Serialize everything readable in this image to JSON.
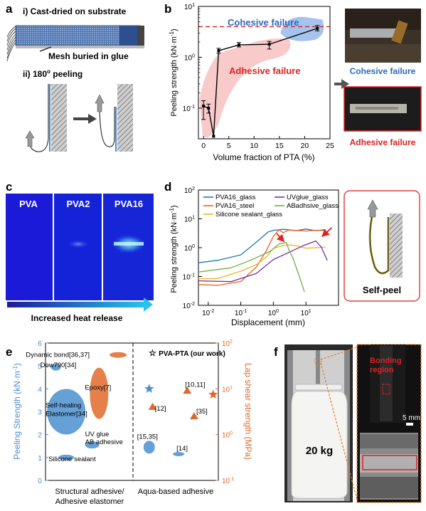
{
  "panel_letters": [
    "a",
    "b",
    "c",
    "d",
    "e",
    "f"
  ],
  "panel_a": {
    "step1": "i) Cast-dried on substrate",
    "mesh_label": "Mesh buried in glue",
    "step2_prefix": "ii) 180",
    "step2_sup": "o",
    "step2_suffix": " peeling"
  },
  "panel_b_photos": {
    "cohesive_caption": "Cohesive failure",
    "adhesive_caption": "Adhesive failure"
  },
  "panel_c": {
    "sample_labels": [
      "PVA",
      "PVA2",
      "PVA16"
    ],
    "arrow_caption": "Increased heat release"
  },
  "panel_d_inset": {
    "caption": "Self-peel"
  },
  "panel_f": {
    "weight_label": "20 kg",
    "region_label_1": "Bonding",
    "region_label_2": "region",
    "scale_label": "5 mm"
  },
  "colors": {
    "blue": "#4a8fd0",
    "red": "#e02020",
    "orange": "#e06a2c",
    "pink_fill": "#f6b8b8",
    "blue_fill": "#8fb4e8"
  },
  "chart_data": [
    {
      "id": "b",
      "type": "line",
      "xlabel": "Volume fraction of PTA (%)",
      "ylabel": "Peeling strength (kN·m",
      "ylabel_sup": "-1",
      "ylabel_end": ")",
      "x_ticks": [
        "0",
        "5",
        "10",
        "15",
        "20",
        "25"
      ],
      "y_tick_base": [
        "10",
        "10",
        "10"
      ],
      "y_tick_exp": [
        "-1",
        "0",
        "1"
      ],
      "xlim": [
        -1,
        25
      ],
      "ylim": [
        0.025,
        10
      ],
      "yscale": "log",
      "annotations": [
        "Cohesive failure",
        "Adhesive failure"
      ],
      "reference_line_y": 4,
      "x": [
        0,
        1,
        2,
        3,
        7,
        13,
        22.5
      ],
      "y": [
        0.11,
        0.1,
        0.028,
        1.35,
        1.75,
        1.8,
        3.7
      ],
      "err_low": [
        0.05,
        0.02,
        0.0,
        0.15,
        0.15,
        0.35,
        0.4
      ],
      "err_high": [
        0.03,
        0.02,
        0.0,
        0.15,
        0.2,
        0.25,
        0.5
      ]
    },
    {
      "id": "d",
      "type": "line",
      "xlabel": "Displacement (mm)",
      "ylabel": "Peeling strength (kN·m",
      "ylabel_sup": "-1",
      "ylabel_end": ")",
      "xscale": "log",
      "yscale": "log",
      "xlim": [
        0.005,
        100
      ],
      "ylim": [
        0.01,
        100
      ],
      "x_tick_base": [
        "10",
        "10",
        "10",
        "10"
      ],
      "x_tick_exp": [
        "-2",
        "-1",
        "0",
        "1"
      ],
      "y_tick_base": [
        "10",
        "10",
        "10",
        "10",
        "10"
      ],
      "y_tick_exp": [
        "-2",
        "-1",
        "0",
        "1",
        "2"
      ],
      "series": [
        {
          "name": "PVA16_glass",
          "color": "#1f77b4",
          "x": [
            0.005,
            0.02,
            0.1,
            0.3,
            0.7,
            1.0,
            2,
            3,
            5,
            10,
            20,
            40
          ],
          "y": [
            0.3,
            0.35,
            0.6,
            1.5,
            3.5,
            4.2,
            4.1,
            4.3,
            4.0,
            4.2,
            4.1,
            4.2
          ]
        },
        {
          "name": "PVA16_steel",
          "color": "#e8641e",
          "x": [
            0.005,
            0.02,
            0.1,
            0.3,
            0.6,
            1.0,
            1.5,
            2,
            3,
            5,
            10,
            20,
            40
          ],
          "y": [
            0.05,
            0.05,
            0.07,
            0.2,
            0.8,
            2.5,
            4.0,
            3.5,
            4.0,
            3.9,
            4.0,
            3.8,
            4.0
          ]
        },
        {
          "name": "Silicone sealant_glass",
          "color": "#e8b820",
          "x": [
            0.005,
            0.02,
            0.1,
            0.3,
            0.6,
            1.0,
            2,
            3,
            5,
            10,
            20,
            40
          ],
          "y": [
            0.08,
            0.09,
            0.15,
            0.25,
            0.5,
            0.9,
            1.2,
            1.3,
            1.1,
            1.0,
            1.0,
            1.0
          ]
        },
        {
          "name": "UVglue_glass",
          "color": "#7b2d9e",
          "x": [
            0.005,
            0.05,
            0.3,
            1.0,
            3,
            8,
            20,
            30,
            45
          ],
          "y": [
            0.07,
            0.07,
            0.12,
            0.4,
            0.7,
            1.1,
            1.8,
            1.0,
            0.35
          ]
        },
        {
          "name": "ABadhsive_glass",
          "color": "#70ad47",
          "x": [
            0.005,
            0.05,
            0.2,
            0.8,
            1.5,
            2.5,
            3,
            4,
            6,
            9
          ],
          "y": [
            0.15,
            0.2,
            0.35,
            0.8,
            1.3,
            1.5,
            0.9,
            0.4,
            0.12,
            0.03
          ]
        }
      ],
      "arrow_targets": [
        [
          2.3,
          1.4
        ],
        [
          25,
          2.0
        ]
      ]
    },
    {
      "id": "e",
      "type": "scatter",
      "ylabel_left": "Peeling Strength (kN·m",
      "ylabel_left_sup": "-1",
      "ylabel_left_end": ")",
      "ylabel_right": "Lap shear strength (MPa)",
      "xlabel_left": [
        "Structural adhesive/",
        "Adhesive elastomer"
      ],
      "xlabel_right": "Aqua-based adhesive",
      "left_ylim": [
        0,
        6
      ],
      "left_ticks": [
        "0",
        "1",
        "2",
        "3",
        "4",
        "5",
        "6"
      ],
      "right_yscale": "log",
      "right_ylim": [
        0.1,
        100
      ],
      "right_tick_base": [
        "10",
        "10",
        "10",
        "10"
      ],
      "right_tick_exp": [
        "-1",
        "0",
        "1",
        "2"
      ],
      "legend": "PVA-PTA (our work)",
      "regions": [
        {
          "label": "Dynamic bond[36,37]",
          "axis": "right",
          "x": 0.42,
          "y": 55,
          "color": "#e06a2c"
        },
        {
          "label": "Dow790[34]",
          "axis": "left",
          "x": 0.06,
          "y": 4.95,
          "color": "#4a8fd0"
        },
        {
          "label": "Epoxy[7]",
          "axis": "right",
          "x": 0.31,
          "y": 8,
          "color": "#e06a2c"
        },
        {
          "label": "Self-healing Elastomer[34]",
          "axis": "left",
          "x": 0.12,
          "y": 3.0,
          "color": "#4a8fd0"
        },
        {
          "label": "UV glue AB adhesive",
          "axis": "left",
          "x": 0.27,
          "y": 1.55,
          "color": "#4a8fd0"
        },
        {
          "label": "Silicone sealant",
          "axis": "left",
          "x": 0.12,
          "y": 1.0,
          "color": "#4a8fd0"
        },
        {
          "label": "[10,11]",
          "axis": "right",
          "x": 0.82,
          "y": 9,
          "color": "#e06a2c"
        },
        {
          "label": "[12]",
          "axis": "right",
          "x": 0.62,
          "y": 4,
          "color": "#e06a2c"
        },
        {
          "label": "[35]",
          "axis": "right",
          "x": 0.86,
          "y": 2.5,
          "color": "#e06a2c"
        },
        {
          "label": "[15,35]",
          "axis": "left",
          "x": 0.6,
          "y": 1.45,
          "color": "#4a8fd0"
        },
        {
          "label": "[14]",
          "axis": "left",
          "x": 0.77,
          "y": 1.15,
          "color": "#4a8fd0"
        }
      ],
      "our_work": [
        {
          "axis": "left",
          "x": 0.6,
          "y": 4.0,
          "color": "#4a8fd0"
        },
        {
          "axis": "right",
          "x": 0.97,
          "y": 7.5,
          "color": "#e06a2c"
        }
      ]
    }
  ]
}
